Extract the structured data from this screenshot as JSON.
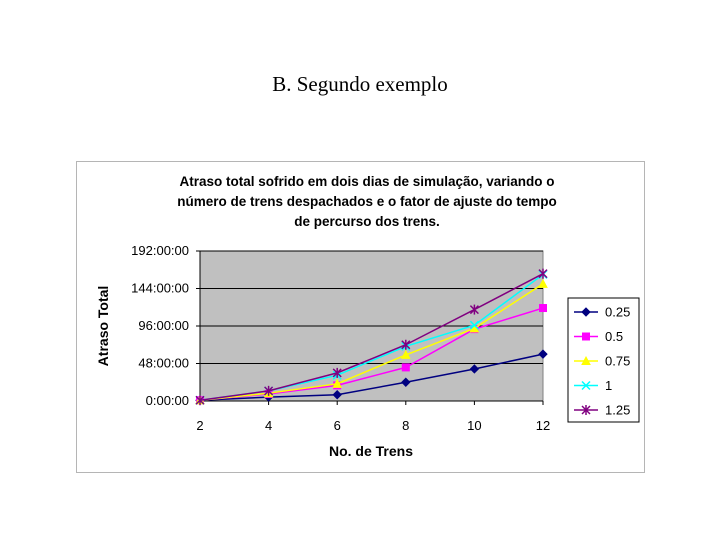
{
  "slide": {
    "title": "B. Segundo exemplo"
  },
  "chart_data": {
    "type": "line",
    "title_lines": [
      "Atraso total sofrido em dois dias de simulação, variando o",
      "número de trens despachados e o fator de ajuste do tempo",
      "de percurso dos trens."
    ],
    "xlabel": "No. de Trens",
    "ylabel": "Atraso Total",
    "x": [
      2,
      4,
      6,
      8,
      10,
      12
    ],
    "xlim": [
      2,
      12
    ],
    "ylim": [
      0,
      192
    ],
    "y_unit": "hours",
    "y_ticks": [
      {
        "value": 0,
        "label": "0:00:00"
      },
      {
        "value": 48,
        "label": "48:00:00"
      },
      {
        "value": 96,
        "label": "96:00:00"
      },
      {
        "value": 144,
        "label": "144:00:00"
      },
      {
        "value": 192,
        "label": "192:00:00"
      }
    ],
    "x_tick_labels": [
      "2",
      "4",
      "6",
      "8",
      "10",
      "12"
    ],
    "grid": "horizontal",
    "plot_background": "#c0c0c0",
    "legend_position": "right",
    "series": [
      {
        "name": "0.25",
        "color": "#000080",
        "marker": "diamond",
        "values": [
          1,
          5,
          8,
          24,
          41,
          60
        ]
      },
      {
        "name": "0.5",
        "color": "#ff00ff",
        "marker": "square",
        "values": [
          1,
          9,
          20,
          43,
          92,
          119
        ]
      },
      {
        "name": "0.75",
        "color": "#ffff00",
        "marker": "triangle",
        "values": [
          1,
          10,
          22,
          59,
          93,
          150
        ]
      },
      {
        "name": "1",
        "color": "#00ffff",
        "marker": "x",
        "values": [
          1,
          13,
          33,
          70,
          97,
          162
        ]
      },
      {
        "name": "1.25",
        "color": "#800080",
        "marker": "star",
        "values": [
          1,
          13,
          36,
          72,
          117,
          163
        ]
      }
    ]
  }
}
